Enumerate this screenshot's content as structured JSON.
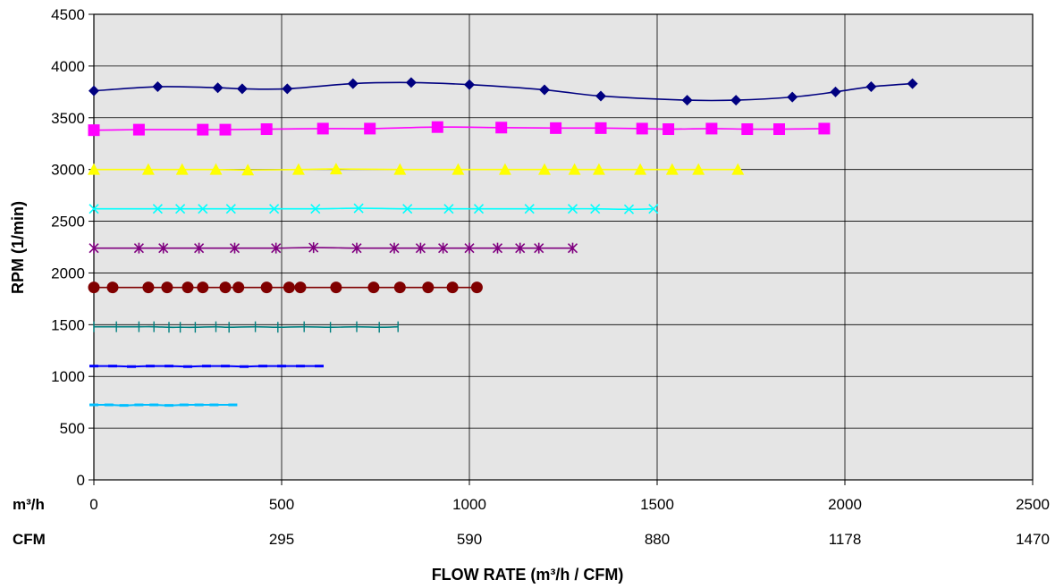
{
  "chart_data": {
    "type": "line",
    "xlabel": "FLOW RATE (m³/h / CFM)",
    "ylabel": "RPM (1/min)",
    "xlim": [
      0,
      2500
    ],
    "ylim": [
      0,
      4500
    ],
    "x_ticks": [
      0,
      500,
      1000,
      1500,
      2000,
      2500
    ],
    "y_ticks": [
      0,
      500,
      1000,
      1500,
      2000,
      2500,
      3000,
      3500,
      4000,
      4500
    ],
    "secondary_axis": {
      "row1_label": "m³/h",
      "row2_label": "CFM",
      "row1_values": [
        "0",
        "500",
        "1000",
        "1500",
        "2000",
        "2500"
      ],
      "row2_values": [
        "",
        "295",
        "590",
        "880",
        "1178",
        "1470"
      ]
    },
    "plot_background": "#e5e5e5",
    "grid": true,
    "legend": "none",
    "series": [
      {
        "color": "#000080",
        "marker": "diamond",
        "x": [
          0,
          170,
          330,
          395,
          515,
          690,
          845,
          1000,
          1200,
          1350,
          1580,
          1710,
          1860,
          1975,
          2070,
          2180
        ],
        "y": [
          3760,
          3800,
          3790,
          3780,
          3780,
          3830,
          3840,
          3820,
          3770,
          3710,
          3670,
          3670,
          3700,
          3750,
          3800,
          3830
        ]
      },
      {
        "color": "#ff00ff",
        "marker": "square",
        "x": [
          0,
          120,
          290,
          350,
          460,
          610,
          735,
          915,
          1085,
          1230,
          1350,
          1460,
          1530,
          1645,
          1740,
          1825,
          1945
        ],
        "y": [
          3380,
          3385,
          3385,
          3385,
          3390,
          3395,
          3395,
          3410,
          3405,
          3400,
          3400,
          3395,
          3390,
          3395,
          3390,
          3390,
          3395
        ]
      },
      {
        "color": "#ffff00",
        "marker": "triangle",
        "x": [
          0,
          145,
          235,
          325,
          410,
          545,
          645,
          815,
          970,
          1095,
          1200,
          1280,
          1345,
          1455,
          1540,
          1610,
          1715
        ],
        "y": [
          3000,
          3000,
          3000,
          3000,
          2995,
          3000,
          3005,
          3000,
          3000,
          3000,
          3000,
          3000,
          3000,
          3000,
          3000,
          3000,
          3000
        ]
      },
      {
        "color": "#00ffff",
        "marker": "x",
        "x": [
          0,
          170,
          230,
          290,
          365,
          480,
          590,
          705,
          835,
          945,
          1025,
          1160,
          1275,
          1335,
          1425,
          1490
        ],
        "y": [
          2620,
          2620,
          2620,
          2620,
          2620,
          2620,
          2620,
          2625,
          2620,
          2620,
          2620,
          2620,
          2620,
          2620,
          2615,
          2620
        ]
      },
      {
        "color": "#800080",
        "marker": "star",
        "x": [
          0,
          120,
          185,
          280,
          375,
          485,
          585,
          700,
          800,
          870,
          930,
          1000,
          1075,
          1135,
          1185,
          1275
        ],
        "y": [
          2240,
          2240,
          2240,
          2240,
          2240,
          2240,
          2245,
          2240,
          2240,
          2240,
          2240,
          2240,
          2240,
          2240,
          2240,
          2240
        ]
      },
      {
        "color": "#800000",
        "marker": "circle",
        "x": [
          0,
          50,
          145,
          195,
          250,
          290,
          350,
          385,
          460,
          520,
          550,
          645,
          745,
          815,
          890,
          955,
          1020
        ],
        "y": [
          1860,
          1860,
          1860,
          1860,
          1860,
          1860,
          1860,
          1860,
          1860,
          1860,
          1860,
          1860,
          1860,
          1860,
          1860,
          1860,
          1860
        ]
      },
      {
        "color": "#008080",
        "marker": "plus",
        "x": [
          0,
          60,
          120,
          160,
          200,
          230,
          270,
          325,
          360,
          430,
          490,
          560,
          630,
          700,
          760,
          810
        ],
        "y": [
          1480,
          1480,
          1480,
          1480,
          1475,
          1475,
          1475,
          1480,
          1475,
          1480,
          1475,
          1480,
          1475,
          1480,
          1475,
          1480
        ]
      },
      {
        "color": "#0000ff",
        "marker": "dash",
        "x": [
          0,
          50,
          100,
          150,
          200,
          250,
          300,
          350,
          400,
          450,
          500,
          550,
          600
        ],
        "y": [
          1100,
          1100,
          1095,
          1100,
          1100,
          1095,
          1100,
          1100,
          1095,
          1100,
          1100,
          1100,
          1100
        ]
      },
      {
        "color": "#00bfff",
        "marker": "dash",
        "x": [
          0,
          40,
          80,
          120,
          160,
          200,
          240,
          280,
          320,
          370
        ],
        "y": [
          725,
          725,
          720,
          725,
          725,
          720,
          725,
          725,
          725,
          725
        ]
      }
    ]
  }
}
